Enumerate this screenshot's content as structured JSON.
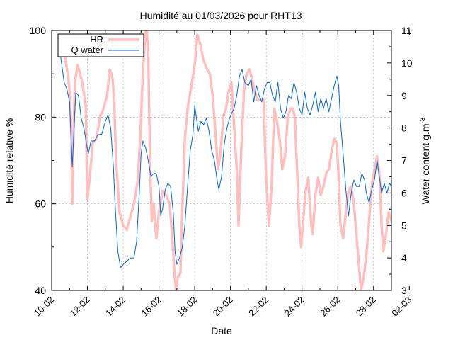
{
  "chart_data": {
    "type": "line",
    "title": "Humidité au 01/03/2026 pour RHT13",
    "xlabel": "Date",
    "ylabel_left": "Humidité relative %",
    "ylabel_right_main": "Water content g.m",
    "ylabel_right_sup": "-3",
    "x_tick_labels": [
      "10-02",
      "12-02",
      "14-02",
      "16-02",
      "18-02",
      "20-02",
      "22-02",
      "24-02",
      "26-02",
      "28-02",
      "02-03"
    ],
    "x_range_days": [
      0,
      19
    ],
    "y_left_ticks": [
      "40",
      "60",
      "80",
      "100"
    ],
    "y_left_range": [
      40,
      100
    ],
    "y_right_ticks": [
      "3",
      "4",
      "5",
      "6",
      "7",
      "8",
      "9",
      "10",
      "11"
    ],
    "y_right_range": [
      3,
      11
    ],
    "grid": true,
    "legend": "top-left",
    "series": [
      {
        "name": "HR",
        "axis": "left",
        "color": "#ffbfbf",
        "points": [
          [
            0.5,
            99
          ],
          [
            0.7,
            95
          ],
          [
            0.9,
            90
          ],
          [
            1.0,
            86
          ],
          [
            1.1,
            76
          ],
          [
            1.15,
            60
          ],
          [
            1.2,
            72
          ],
          [
            1.3,
            88
          ],
          [
            1.45,
            92
          ],
          [
            1.6,
            90
          ],
          [
            1.75,
            87
          ],
          [
            1.9,
            83
          ],
          [
            2.0,
            61
          ],
          [
            2.15,
            67
          ],
          [
            2.3,
            74
          ],
          [
            2.5,
            75
          ],
          [
            2.7,
            80
          ],
          [
            2.9,
            82
          ],
          [
            3.1,
            85
          ],
          [
            3.25,
            91
          ],
          [
            3.4,
            89
          ],
          [
            3.5,
            84
          ],
          [
            3.6,
            70
          ],
          [
            3.8,
            58
          ],
          [
            4.0,
            55
          ],
          [
            4.2,
            54
          ],
          [
            4.4,
            57
          ],
          [
            4.6,
            60
          ],
          [
            4.8,
            65
          ],
          [
            4.95,
            75
          ],
          [
            5.1,
            90
          ],
          [
            5.2,
            97
          ],
          [
            5.3,
            101
          ],
          [
            5.4,
            95
          ],
          [
            5.5,
            70
          ],
          [
            5.6,
            56
          ],
          [
            5.7,
            60
          ],
          [
            5.85,
            52
          ],
          [
            6.0,
            58
          ],
          [
            6.2,
            63
          ],
          [
            6.4,
            62
          ],
          [
            6.6,
            60
          ],
          [
            6.75,
            52
          ],
          [
            6.85,
            45
          ],
          [
            6.95,
            40
          ],
          [
            7.05,
            43
          ],
          [
            7.2,
            44
          ],
          [
            7.3,
            58
          ],
          [
            7.45,
            75
          ],
          [
            7.6,
            82
          ],
          [
            7.8,
            87
          ],
          [
            8.0,
            92
          ],
          [
            8.15,
            99
          ],
          [
            8.3,
            97
          ],
          [
            8.5,
            93
          ],
          [
            8.7,
            91
          ],
          [
            8.85,
            90
          ],
          [
            9.0,
            85
          ],
          [
            9.15,
            77
          ],
          [
            9.3,
            68
          ],
          [
            9.45,
            72
          ],
          [
            9.6,
            80
          ],
          [
            9.75,
            82
          ],
          [
            9.9,
            86
          ],
          [
            10.05,
            88
          ],
          [
            10.2,
            78
          ],
          [
            10.35,
            68
          ],
          [
            10.45,
            55
          ],
          [
            10.6,
            72
          ],
          [
            10.75,
            86
          ],
          [
            10.9,
            90
          ],
          [
            11.05,
            91
          ],
          [
            11.2,
            89
          ],
          [
            11.35,
            86
          ],
          [
            11.5,
            84
          ],
          [
            11.7,
            84
          ],
          [
            11.85,
            84
          ],
          [
            12.0,
            65
          ],
          [
            12.15,
            55
          ],
          [
            12.3,
            64
          ],
          [
            12.45,
            82
          ],
          [
            12.6,
            79
          ],
          [
            12.75,
            75
          ],
          [
            12.9,
            68
          ],
          [
            13.05,
            71
          ],
          [
            13.2,
            80
          ],
          [
            13.35,
            82
          ],
          [
            13.5,
            82
          ],
          [
            13.6,
            80
          ],
          [
            13.75,
            65
          ],
          [
            13.85,
            55
          ],
          [
            13.95,
            50
          ],
          [
            14.1,
            58
          ],
          [
            14.2,
            63
          ],
          [
            14.35,
            66
          ],
          [
            14.5,
            56
          ],
          [
            14.6,
            53
          ],
          [
            14.75,
            62
          ],
          [
            14.9,
            66
          ],
          [
            15.05,
            62
          ],
          [
            15.2,
            64
          ],
          [
            15.35,
            67
          ],
          [
            15.5,
            68
          ],
          [
            15.65,
            72
          ],
          [
            15.8,
            75
          ],
          [
            15.95,
            74
          ],
          [
            16.05,
            66
          ],
          [
            16.15,
            55
          ],
          [
            16.3,
            52
          ],
          [
            16.45,
            58
          ],
          [
            16.6,
            63
          ],
          [
            16.75,
            64
          ],
          [
            16.9,
            60
          ],
          [
            17.0,
            55
          ],
          [
            17.1,
            50
          ],
          [
            17.2,
            45
          ],
          [
            17.3,
            40
          ],
          [
            17.45,
            43
          ],
          [
            17.6,
            48
          ],
          [
            17.75,
            56
          ],
          [
            17.9,
            64
          ],
          [
            18.05,
            68
          ],
          [
            18.2,
            71
          ],
          [
            18.35,
            66
          ],
          [
            18.45,
            55
          ],
          [
            18.55,
            49
          ],
          [
            18.7,
            53
          ],
          [
            18.85,
            58
          ],
          [
            19.0,
            56
          ]
        ]
      },
      {
        "name": "Q water",
        "axis": "right",
        "color": "#0066dd",
        "points": [
          [
            0.5,
            10.2
          ],
          [
            0.7,
            9.4
          ],
          [
            0.85,
            9.2
          ],
          [
            1.0,
            8.8
          ],
          [
            1.1,
            7.5
          ],
          [
            1.15,
            6.8
          ],
          [
            1.25,
            8.0
          ],
          [
            1.35,
            9.1
          ],
          [
            1.5,
            9.0
          ],
          [
            1.65,
            8.3
          ],
          [
            1.8,
            8.0
          ],
          [
            1.95,
            7.5
          ],
          [
            2.05,
            7.2
          ],
          [
            2.2,
            7.6
          ],
          [
            2.4,
            7.6
          ],
          [
            2.6,
            7.8
          ],
          [
            2.8,
            7.8
          ],
          [
            3.0,
            8.2
          ],
          [
            3.15,
            8.4
          ],
          [
            3.3,
            8.0
          ],
          [
            3.45,
            6.8
          ],
          [
            3.55,
            5.6
          ],
          [
            3.7,
            4.2
          ],
          [
            3.85,
            3.7
          ],
          [
            4.0,
            3.8
          ],
          [
            4.2,
            3.9
          ],
          [
            4.4,
            4.0
          ],
          [
            4.6,
            4.0
          ],
          [
            4.75,
            4.5
          ],
          [
            4.9,
            6.0
          ],
          [
            5.0,
            7.2
          ],
          [
            5.1,
            7.6
          ],
          [
            5.25,
            7.4
          ],
          [
            5.4,
            7.0
          ],
          [
            5.55,
            6.5
          ],
          [
            5.7,
            6.6
          ],
          [
            5.85,
            6.6
          ],
          [
            6.0,
            6.2
          ],
          [
            6.1,
            5.3
          ],
          [
            6.2,
            5.5
          ],
          [
            6.35,
            6.1
          ],
          [
            6.5,
            6.3
          ],
          [
            6.65,
            6.2
          ],
          [
            6.8,
            5.4
          ],
          [
            6.9,
            4.2
          ],
          [
            7.0,
            3.8
          ],
          [
            7.15,
            4.0
          ],
          [
            7.3,
            4.3
          ],
          [
            7.45,
            5.0
          ],
          [
            7.6,
            6.2
          ],
          [
            7.75,
            7.3
          ],
          [
            7.9,
            7.8
          ],
          [
            8.0,
            8.7
          ],
          [
            8.1,
            8.3
          ],
          [
            8.2,
            7.9
          ],
          [
            8.35,
            8.2
          ],
          [
            8.5,
            8.1
          ],
          [
            8.65,
            8.3
          ],
          [
            8.8,
            7.9
          ],
          [
            8.95,
            7.3
          ],
          [
            9.1,
            7.0
          ],
          [
            9.25,
            6.4
          ],
          [
            9.35,
            6.1
          ],
          [
            9.5,
            6.5
          ],
          [
            9.65,
            7.5
          ],
          [
            9.8,
            8.0
          ],
          [
            9.95,
            8.3
          ],
          [
            10.1,
            8.5
          ],
          [
            10.2,
            8.6
          ],
          [
            10.35,
            9.0
          ],
          [
            10.5,
            9.6
          ],
          [
            10.65,
            9.8
          ],
          [
            10.8,
            9.4
          ],
          [
            11.0,
            9.3
          ],
          [
            11.15,
            9.5
          ],
          [
            11.3,
            8.8
          ],
          [
            11.45,
            9.3
          ],
          [
            11.6,
            9.0
          ],
          [
            11.75,
            8.8
          ],
          [
            11.9,
            9.2
          ],
          [
            12.05,
            9.4
          ],
          [
            12.2,
            9.4
          ],
          [
            12.35,
            9.0
          ],
          [
            12.5,
            8.8
          ],
          [
            12.65,
            9.4
          ],
          [
            12.8,
            8.6
          ],
          [
            12.95,
            8.3
          ],
          [
            13.1,
            8.5
          ],
          [
            13.25,
            9.0
          ],
          [
            13.4,
            8.9
          ],
          [
            13.55,
            9.4
          ],
          [
            13.7,
            9.1
          ],
          [
            13.85,
            8.6
          ],
          [
            14.0,
            8.4
          ],
          [
            14.15,
            9.1
          ],
          [
            14.3,
            8.6
          ],
          [
            14.45,
            8.4
          ],
          [
            14.6,
            8.7
          ],
          [
            14.75,
            9.1
          ],
          [
            14.9,
            8.5
          ],
          [
            15.05,
            8.9
          ],
          [
            15.2,
            8.6
          ],
          [
            15.35,
            8.9
          ],
          [
            15.5,
            8.5
          ],
          [
            15.65,
            8.9
          ],
          [
            15.8,
            9.3
          ],
          [
            15.95,
            9.6
          ],
          [
            16.05,
            9.3
          ],
          [
            16.15,
            8.2
          ],
          [
            16.3,
            7.2
          ],
          [
            16.45,
            6.1
          ],
          [
            16.6,
            5.3
          ],
          [
            16.75,
            6.0
          ],
          [
            16.9,
            6.4
          ],
          [
            17.05,
            6.2
          ],
          [
            17.2,
            6.2
          ],
          [
            17.35,
            6.6
          ],
          [
            17.5,
            6.4
          ],
          [
            17.6,
            6.0
          ],
          [
            17.75,
            5.7
          ],
          [
            17.9,
            6.1
          ],
          [
            18.05,
            6.4
          ],
          [
            18.2,
            7.0
          ],
          [
            18.3,
            6.6
          ],
          [
            18.45,
            6.0
          ],
          [
            18.6,
            6.3
          ],
          [
            18.75,
            6.0
          ],
          [
            18.9,
            6.3
          ],
          [
            19.0,
            6.2
          ]
        ]
      }
    ]
  }
}
